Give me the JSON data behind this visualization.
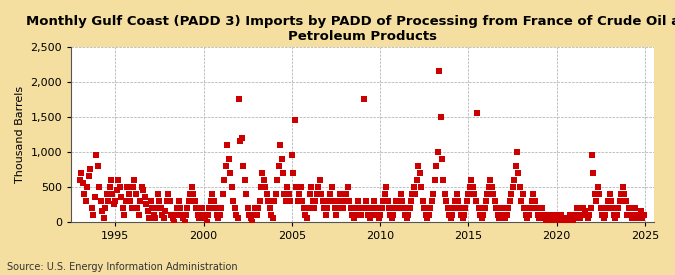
{
  "title": "Monthly Gulf Coast (PADD 3) Imports by PADD of Processing from France of Crude Oil and\nPetroleum Products",
  "ylabel": "Thousand Barrels",
  "source": "Source: U.S. Energy Information Administration",
  "fig_background_color": "#f5dfa0",
  "plot_background_color": "#ffffff",
  "marker_color": "#cc0000",
  "marker": "s",
  "marker_size": 4,
  "xlim": [
    1992.5,
    2025.5
  ],
  "ylim": [
    0,
    2500
  ],
  "yticks": [
    0,
    500,
    1000,
    1500,
    2000,
    2500
  ],
  "xticks": [
    1995,
    2000,
    2005,
    2010,
    2015,
    2020,
    2025
  ],
  "grid_color": "#aaaaaa",
  "grid_style": "--",
  "title_fontsize": 9.5,
  "axis_fontsize": 8,
  "tick_fontsize": 8,
  "source_fontsize": 7,
  "data": [
    [
      1993.0,
      600
    ],
    [
      1993.08,
      700
    ],
    [
      1993.17,
      550
    ],
    [
      1993.25,
      400
    ],
    [
      1993.33,
      300
    ],
    [
      1993.42,
      500
    ],
    [
      1993.5,
      650
    ],
    [
      1993.58,
      750
    ],
    [
      1993.67,
      200
    ],
    [
      1993.75,
      100
    ],
    [
      1993.83,
      350
    ],
    [
      1993.92,
      950
    ],
    [
      1994.0,
      800
    ],
    [
      1994.08,
      500
    ],
    [
      1994.17,
      300
    ],
    [
      1994.25,
      150
    ],
    [
      1994.33,
      50
    ],
    [
      1994.42,
      200
    ],
    [
      1994.5,
      400
    ],
    [
      1994.58,
      300
    ],
    [
      1994.67,
      500
    ],
    [
      1994.75,
      600
    ],
    [
      1994.83,
      400
    ],
    [
      1994.92,
      250
    ],
    [
      1995.0,
      300
    ],
    [
      1995.08,
      450
    ],
    [
      1995.17,
      600
    ],
    [
      1995.25,
      500
    ],
    [
      1995.33,
      350
    ],
    [
      1995.42,
      200
    ],
    [
      1995.5,
      100
    ],
    [
      1995.58,
      300
    ],
    [
      1995.67,
      500
    ],
    [
      1995.75,
      400
    ],
    [
      1995.83,
      300
    ],
    [
      1995.92,
      200
    ],
    [
      1996.0,
      500
    ],
    [
      1996.08,
      600
    ],
    [
      1996.17,
      400
    ],
    [
      1996.25,
      200
    ],
    [
      1996.33,
      100
    ],
    [
      1996.42,
      300
    ],
    [
      1996.5,
      500
    ],
    [
      1996.58,
      450
    ],
    [
      1996.67,
      350
    ],
    [
      1996.75,
      250
    ],
    [
      1996.83,
      150
    ],
    [
      1996.92,
      50
    ],
    [
      1997.0,
      300
    ],
    [
      1997.08,
      200
    ],
    [
      1997.17,
      100
    ],
    [
      1997.25,
      50
    ],
    [
      1997.33,
      200
    ],
    [
      1997.42,
      400
    ],
    [
      1997.5,
      300
    ],
    [
      1997.58,
      200
    ],
    [
      1997.67,
      100
    ],
    [
      1997.75,
      50
    ],
    [
      1997.83,
      150
    ],
    [
      1997.92,
      300
    ],
    [
      1998.0,
      400
    ],
    [
      1998.08,
      300
    ],
    [
      1998.17,
      100
    ],
    [
      1998.25,
      50
    ],
    [
      1998.33,
      0
    ],
    [
      1998.42,
      100
    ],
    [
      1998.5,
      200
    ],
    [
      1998.58,
      300
    ],
    [
      1998.67,
      200
    ],
    [
      1998.75,
      100
    ],
    [
      1998.83,
      50
    ],
    [
      1998.92,
      0
    ],
    [
      1999.0,
      100
    ],
    [
      1999.08,
      200
    ],
    [
      1999.17,
      300
    ],
    [
      1999.25,
      400
    ],
    [
      1999.33,
      500
    ],
    [
      1999.42,
      400
    ],
    [
      1999.5,
      300
    ],
    [
      1999.58,
      200
    ],
    [
      1999.67,
      100
    ],
    [
      1999.75,
      50
    ],
    [
      1999.83,
      100
    ],
    [
      1999.92,
      200
    ],
    [
      2000.0,
      100
    ],
    [
      2000.08,
      50
    ],
    [
      2000.17,
      0
    ],
    [
      2000.25,
      100
    ],
    [
      2000.33,
      200
    ],
    [
      2000.42,
      300
    ],
    [
      2000.5,
      400
    ],
    [
      2000.58,
      300
    ],
    [
      2000.67,
      200
    ],
    [
      2000.75,
      100
    ],
    [
      2000.83,
      50
    ],
    [
      2000.92,
      100
    ],
    [
      2001.0,
      200
    ],
    [
      2001.08,
      400
    ],
    [
      2001.17,
      600
    ],
    [
      2001.25,
      800
    ],
    [
      2001.33,
      1100
    ],
    [
      2001.42,
      900
    ],
    [
      2001.5,
      700
    ],
    [
      2001.58,
      500
    ],
    [
      2001.67,
      300
    ],
    [
      2001.75,
      200
    ],
    [
      2001.83,
      100
    ],
    [
      2001.92,
      50
    ],
    [
      2002.0,
      1750
    ],
    [
      2002.08,
      1150
    ],
    [
      2002.17,
      1200
    ],
    [
      2002.25,
      800
    ],
    [
      2002.33,
      600
    ],
    [
      2002.42,
      400
    ],
    [
      2002.5,
      200
    ],
    [
      2002.58,
      100
    ],
    [
      2002.67,
      50
    ],
    [
      2002.75,
      0
    ],
    [
      2002.83,
      100
    ],
    [
      2002.92,
      200
    ],
    [
      2003.0,
      100
    ],
    [
      2003.08,
      200
    ],
    [
      2003.17,
      300
    ],
    [
      2003.25,
      500
    ],
    [
      2003.33,
      700
    ],
    [
      2003.42,
      600
    ],
    [
      2003.5,
      500
    ],
    [
      2003.58,
      400
    ],
    [
      2003.67,
      300
    ],
    [
      2003.75,
      200
    ],
    [
      2003.83,
      100
    ],
    [
      2003.92,
      50
    ],
    [
      2004.0,
      300
    ],
    [
      2004.08,
      400
    ],
    [
      2004.17,
      600
    ],
    [
      2004.25,
      800
    ],
    [
      2004.33,
      1100
    ],
    [
      2004.42,
      900
    ],
    [
      2004.5,
      700
    ],
    [
      2004.58,
      400
    ],
    [
      2004.67,
      300
    ],
    [
      2004.75,
      500
    ],
    [
      2004.83,
      400
    ],
    [
      2004.92,
      300
    ],
    [
      2005.0,
      950
    ],
    [
      2005.08,
      700
    ],
    [
      2005.17,
      1450
    ],
    [
      2005.25,
      500
    ],
    [
      2005.33,
      300
    ],
    [
      2005.42,
      400
    ],
    [
      2005.5,
      500
    ],
    [
      2005.58,
      300
    ],
    [
      2005.67,
      200
    ],
    [
      2005.75,
      100
    ],
    [
      2005.83,
      50
    ],
    [
      2005.92,
      200
    ],
    [
      2006.0,
      400
    ],
    [
      2006.08,
      500
    ],
    [
      2006.17,
      300
    ],
    [
      2006.25,
      200
    ],
    [
      2006.33,
      300
    ],
    [
      2006.42,
      400
    ],
    [
      2006.5,
      500
    ],
    [
      2006.58,
      600
    ],
    [
      2006.67,
      400
    ],
    [
      2006.75,
      300
    ],
    [
      2006.83,
      200
    ],
    [
      2006.92,
      100
    ],
    [
      2007.0,
      200
    ],
    [
      2007.08,
      300
    ],
    [
      2007.17,
      400
    ],
    [
      2007.25,
      500
    ],
    [
      2007.33,
      300
    ],
    [
      2007.42,
      200
    ],
    [
      2007.5,
      100
    ],
    [
      2007.58,
      200
    ],
    [
      2007.67,
      300
    ],
    [
      2007.75,
      400
    ],
    [
      2007.83,
      300
    ],
    [
      2007.92,
      200
    ],
    [
      2008.0,
      300
    ],
    [
      2008.08,
      400
    ],
    [
      2008.17,
      500
    ],
    [
      2008.25,
      300
    ],
    [
      2008.33,
      200
    ],
    [
      2008.42,
      100
    ],
    [
      2008.5,
      50
    ],
    [
      2008.58,
      100
    ],
    [
      2008.67,
      200
    ],
    [
      2008.75,
      300
    ],
    [
      2008.83,
      200
    ],
    [
      2008.92,
      100
    ],
    [
      2009.0,
      200
    ],
    [
      2009.08,
      1750
    ],
    [
      2009.17,
      300
    ],
    [
      2009.25,
      200
    ],
    [
      2009.33,
      100
    ],
    [
      2009.42,
      50
    ],
    [
      2009.5,
      100
    ],
    [
      2009.58,
      200
    ],
    [
      2009.67,
      300
    ],
    [
      2009.75,
      200
    ],
    [
      2009.83,
      100
    ],
    [
      2009.92,
      50
    ],
    [
      2010.0,
      100
    ],
    [
      2010.08,
      200
    ],
    [
      2010.17,
      300
    ],
    [
      2010.25,
      400
    ],
    [
      2010.33,
      500
    ],
    [
      2010.42,
      300
    ],
    [
      2010.5,
      200
    ],
    [
      2010.58,
      100
    ],
    [
      2010.67,
      50
    ],
    [
      2010.75,
      100
    ],
    [
      2010.83,
      200
    ],
    [
      2010.92,
      300
    ],
    [
      2011.0,
      200
    ],
    [
      2011.08,
      300
    ],
    [
      2011.17,
      400
    ],
    [
      2011.25,
      300
    ],
    [
      2011.33,
      200
    ],
    [
      2011.42,
      100
    ],
    [
      2011.5,
      50
    ],
    [
      2011.58,
      100
    ],
    [
      2011.67,
      200
    ],
    [
      2011.75,
      300
    ],
    [
      2011.83,
      400
    ],
    [
      2011.92,
      500
    ],
    [
      2012.0,
      400
    ],
    [
      2012.08,
      600
    ],
    [
      2012.17,
      800
    ],
    [
      2012.25,
      700
    ],
    [
      2012.33,
      500
    ],
    [
      2012.42,
      300
    ],
    [
      2012.5,
      200
    ],
    [
      2012.58,
      100
    ],
    [
      2012.67,
      50
    ],
    [
      2012.75,
      100
    ],
    [
      2012.83,
      200
    ],
    [
      2012.92,
      300
    ],
    [
      2013.0,
      400
    ],
    [
      2013.08,
      600
    ],
    [
      2013.17,
      800
    ],
    [
      2013.25,
      1000
    ],
    [
      2013.33,
      2150
    ],
    [
      2013.42,
      1500
    ],
    [
      2013.5,
      900
    ],
    [
      2013.58,
      600
    ],
    [
      2013.67,
      400
    ],
    [
      2013.75,
      300
    ],
    [
      2013.83,
      200
    ],
    [
      2013.92,
      100
    ],
    [
      2014.0,
      50
    ],
    [
      2014.08,
      100
    ],
    [
      2014.17,
      200
    ],
    [
      2014.25,
      300
    ],
    [
      2014.33,
      400
    ],
    [
      2014.42,
      300
    ],
    [
      2014.5,
      200
    ],
    [
      2014.58,
      100
    ],
    [
      2014.67,
      50
    ],
    [
      2014.75,
      100
    ],
    [
      2014.83,
      200
    ],
    [
      2014.92,
      300
    ],
    [
      2015.0,
      400
    ],
    [
      2015.08,
      500
    ],
    [
      2015.17,
      600
    ],
    [
      2015.25,
      500
    ],
    [
      2015.33,
      400
    ],
    [
      2015.42,
      300
    ],
    [
      2015.5,
      1550
    ],
    [
      2015.58,
      200
    ],
    [
      2015.67,
      100
    ],
    [
      2015.75,
      50
    ],
    [
      2015.83,
      100
    ],
    [
      2015.92,
      200
    ],
    [
      2016.0,
      300
    ],
    [
      2016.08,
      400
    ],
    [
      2016.17,
      500
    ],
    [
      2016.25,
      600
    ],
    [
      2016.33,
      500
    ],
    [
      2016.42,
      400
    ],
    [
      2016.5,
      300
    ],
    [
      2016.58,
      200
    ],
    [
      2016.67,
      100
    ],
    [
      2016.75,
      50
    ],
    [
      2016.83,
      100
    ],
    [
      2016.92,
      200
    ],
    [
      2017.0,
      100
    ],
    [
      2017.08,
      50
    ],
    [
      2017.17,
      100
    ],
    [
      2017.25,
      200
    ],
    [
      2017.33,
      300
    ],
    [
      2017.42,
      400
    ],
    [
      2017.5,
      500
    ],
    [
      2017.58,
      600
    ],
    [
      2017.67,
      800
    ],
    [
      2017.75,
      1000
    ],
    [
      2017.83,
      700
    ],
    [
      2017.92,
      500
    ],
    [
      2018.0,
      300
    ],
    [
      2018.08,
      400
    ],
    [
      2018.17,
      200
    ],
    [
      2018.25,
      100
    ],
    [
      2018.33,
      50
    ],
    [
      2018.42,
      100
    ],
    [
      2018.5,
      200
    ],
    [
      2018.58,
      300
    ],
    [
      2018.67,
      400
    ],
    [
      2018.75,
      300
    ],
    [
      2018.83,
      200
    ],
    [
      2018.92,
      100
    ],
    [
      2019.0,
      50
    ],
    [
      2019.08,
      100
    ],
    [
      2019.17,
      200
    ],
    [
      2019.25,
      100
    ],
    [
      2019.33,
      50
    ],
    [
      2019.42,
      0
    ],
    [
      2019.5,
      50
    ],
    [
      2019.58,
      100
    ],
    [
      2019.67,
      50
    ],
    [
      2019.75,
      0
    ],
    [
      2019.83,
      50
    ],
    [
      2019.92,
      100
    ],
    [
      2020.0,
      50
    ],
    [
      2020.08,
      0
    ],
    [
      2020.17,
      50
    ],
    [
      2020.25,
      100
    ],
    [
      2020.33,
      50
    ],
    [
      2020.42,
      0
    ],
    [
      2020.5,
      50
    ],
    [
      2020.58,
      0
    ],
    [
      2020.67,
      50
    ],
    [
      2020.75,
      100
    ],
    [
      2020.83,
      50
    ],
    [
      2020.92,
      0
    ],
    [
      2021.0,
      50
    ],
    [
      2021.08,
      100
    ],
    [
      2021.17,
      200
    ],
    [
      2021.25,
      100
    ],
    [
      2021.33,
      50
    ],
    [
      2021.42,
      100
    ],
    [
      2021.5,
      200
    ],
    [
      2021.58,
      150
    ],
    [
      2021.67,
      100
    ],
    [
      2021.75,
      50
    ],
    [
      2021.83,
      100
    ],
    [
      2021.92,
      200
    ],
    [
      2022.0,
      950
    ],
    [
      2022.08,
      700
    ],
    [
      2022.17,
      400
    ],
    [
      2022.25,
      300
    ],
    [
      2022.33,
      500
    ],
    [
      2022.42,
      400
    ],
    [
      2022.5,
      200
    ],
    [
      2022.58,
      100
    ],
    [
      2022.67,
      50
    ],
    [
      2022.75,
      100
    ],
    [
      2022.83,
      200
    ],
    [
      2022.92,
      300
    ],
    [
      2023.0,
      400
    ],
    [
      2023.08,
      300
    ],
    [
      2023.17,
      200
    ],
    [
      2023.25,
      100
    ],
    [
      2023.33,
      50
    ],
    [
      2023.42,
      100
    ],
    [
      2023.5,
      200
    ],
    [
      2023.58,
      300
    ],
    [
      2023.67,
      400
    ],
    [
      2023.75,
      500
    ],
    [
      2023.83,
      400
    ],
    [
      2023.92,
      300
    ],
    [
      2024.0,
      100
    ],
    [
      2024.08,
      200
    ],
    [
      2024.17,
      100
    ],
    [
      2024.25,
      50
    ],
    [
      2024.33,
      100
    ],
    [
      2024.42,
      200
    ],
    [
      2024.5,
      100
    ],
    [
      2024.58,
      50
    ],
    [
      2024.67,
      100
    ],
    [
      2024.75,
      150
    ],
    [
      2024.83,
      50
    ],
    [
      2024.92,
      100
    ]
  ]
}
